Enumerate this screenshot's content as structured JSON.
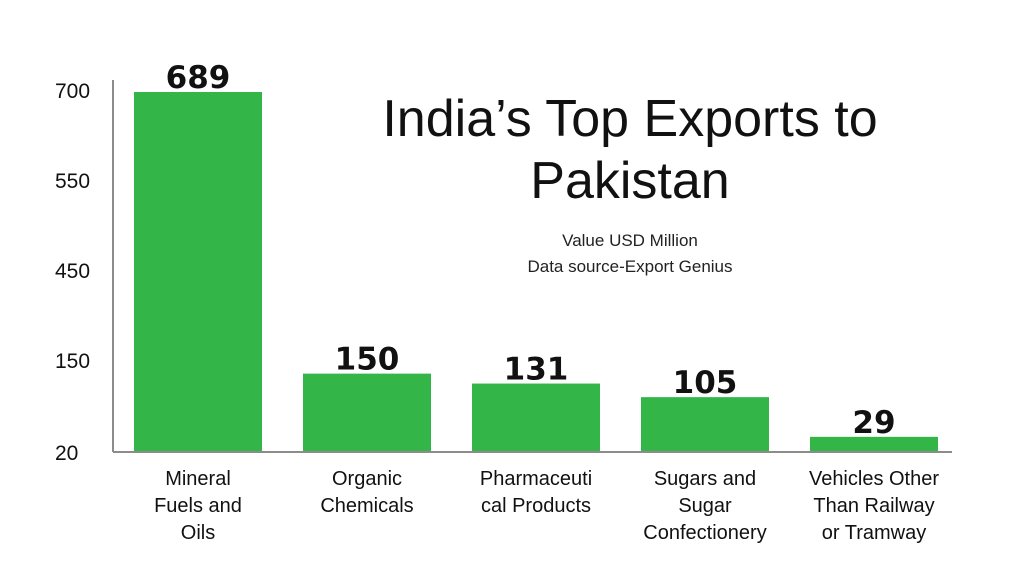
{
  "chart_data": {
    "type": "bar",
    "title": "India’s Top Exports to Pakistan",
    "subtitle_lines": [
      "Value USD Million",
      "Data source-Export Genius"
    ],
    "categories": [
      "Mineral Fuels and Oils",
      "Organic Chemicals",
      "Pharmaceutical Products",
      "Sugars and Sugar Confectionery",
      "Vehicles Other Than Railway or Tramway"
    ],
    "category_label_lines": [
      [
        "Mineral",
        "Fuels and",
        "Oils"
      ],
      [
        "Organic",
        "Chemicals"
      ],
      [
        "Pharmaceuti",
        "cal Products"
      ],
      [
        "Sugars and",
        "Sugar",
        "Confectionery"
      ],
      [
        "Vehicles Other",
        "Than Railway",
        "or Tramway"
      ]
    ],
    "values": [
      689,
      150,
      131,
      105,
      29
    ],
    "data_labels": [
      "689",
      "150",
      "131",
      "105",
      "29"
    ],
    "y_tick_labels": [
      "20",
      "150",
      "450",
      "550",
      "700"
    ],
    "bar_color": "#34b548",
    "axis_color": "#8c8c8c",
    "grid": false,
    "legend": "none"
  }
}
